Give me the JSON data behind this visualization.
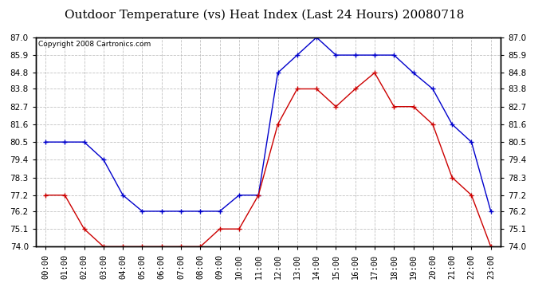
{
  "title": "Outdoor Temperature (vs) Heat Index (Last 24 Hours) 20080718",
  "copyright_text": "Copyright 2008 Cartronics.com",
  "hours": [
    "00:00",
    "01:00",
    "02:00",
    "03:00",
    "04:00",
    "05:00",
    "06:00",
    "07:00",
    "08:00",
    "09:00",
    "10:00",
    "11:00",
    "12:00",
    "13:00",
    "14:00",
    "15:00",
    "16:00",
    "17:00",
    "18:00",
    "19:00",
    "20:00",
    "21:00",
    "22:00",
    "23:00"
  ],
  "blue_data": [
    80.5,
    80.5,
    80.5,
    79.4,
    77.2,
    76.2,
    76.2,
    76.2,
    76.2,
    76.2,
    77.2,
    77.2,
    84.8,
    85.9,
    87.0,
    85.9,
    85.9,
    85.9,
    85.9,
    84.8,
    83.8,
    81.6,
    80.5,
    76.2
  ],
  "red_data": [
    77.2,
    77.2,
    75.1,
    74.0,
    74.0,
    74.0,
    74.0,
    74.0,
    74.0,
    75.1,
    75.1,
    77.2,
    81.6,
    83.8,
    83.8,
    82.7,
    83.8,
    84.8,
    82.7,
    82.7,
    81.6,
    78.3,
    77.2,
    74.0
  ],
  "ylim_min": 74.0,
  "ylim_max": 87.0,
  "yticks": [
    74.0,
    75.1,
    76.2,
    77.2,
    78.3,
    79.4,
    80.5,
    81.6,
    82.7,
    83.8,
    84.8,
    85.9,
    87.0
  ],
  "blue_color": "#0000CC",
  "red_color": "#CC0000",
  "bg_color": "#FFFFFF",
  "grid_color": "#BBBBBB",
  "title_fontsize": 11,
  "copyright_fontsize": 6.5,
  "tick_fontsize": 7.5
}
